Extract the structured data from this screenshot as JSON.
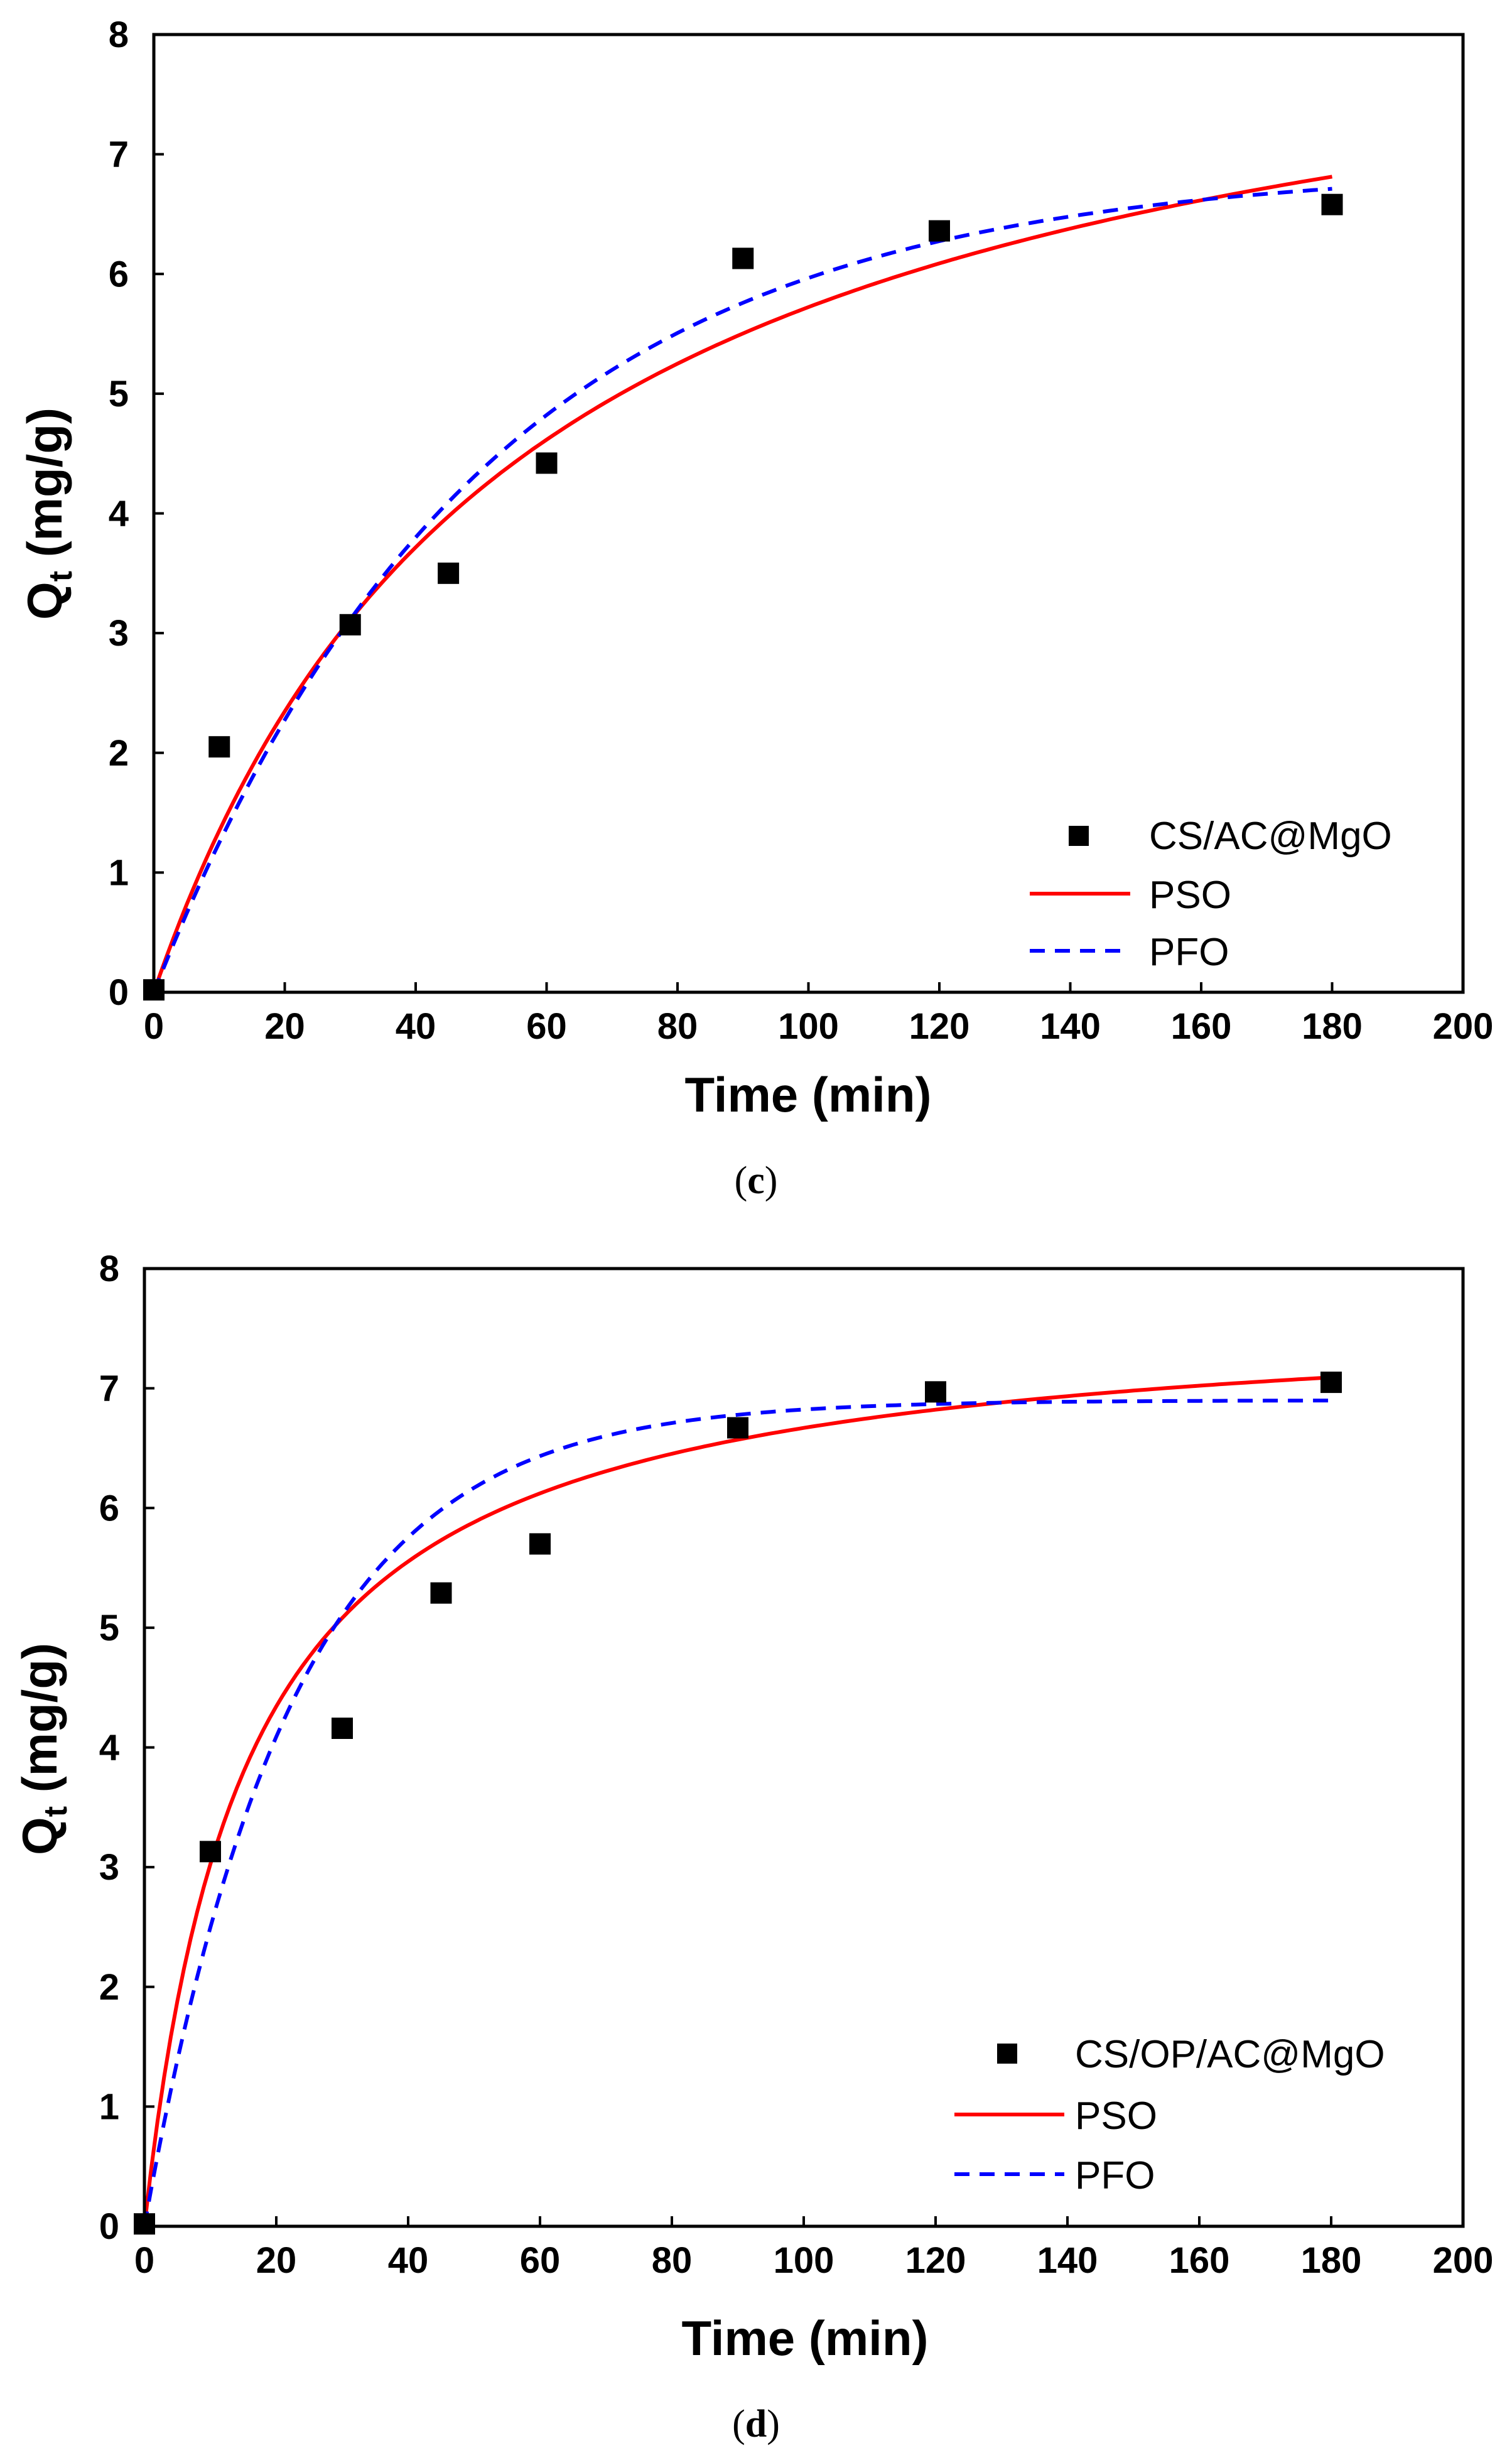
{
  "chart_data": [
    {
      "type": "scatter",
      "title": "",
      "caption": {
        "open": "(",
        "letter": "c",
        "close": ")"
      },
      "xlabel": "Time (min)",
      "ylabel": {
        "main": "Q",
        "sub": "t",
        "rest": " (mg/g)"
      },
      "xlim": [
        0,
        200
      ],
      "ylim": [
        0,
        8
      ],
      "xticks": [
        0,
        20,
        40,
        60,
        80,
        100,
        120,
        140,
        160,
        180,
        200
      ],
      "yticks": [
        0,
        1,
        2,
        3,
        4,
        5,
        6,
        7,
        8
      ],
      "grid": false,
      "legend_position": "bottom-right",
      "series": [
        {
          "name": "CS/AC@MgO",
          "kind": "markers",
          "color": "#000000",
          "x": [
            0,
            10,
            30,
            45,
            60,
            90,
            120,
            180
          ],
          "y": [
            0.02,
            2.05,
            3.07,
            3.5,
            4.42,
            6.13,
            6.36,
            6.58
          ]
        },
        {
          "name": "PSO",
          "kind": "line",
          "color": "#ff0000",
          "dash": "solid",
          "model": {
            "form": "pso",
            "qe": 8.94,
            "k": 0.00199
          },
          "x_end": 180
        },
        {
          "name": "PFO",
          "kind": "line",
          "color": "#0000ff",
          "dash": "dashed",
          "model": {
            "form": "pfo",
            "qe": 6.9,
            "k": 0.02
          },
          "x_end": 180
        }
      ]
    },
    {
      "type": "scatter",
      "title": "",
      "caption": {
        "open": "(",
        "letter": "d",
        "close": ")"
      },
      "xlabel": "Time (min)",
      "ylabel": {
        "main": "Q",
        "sub": "t",
        "rest": " (mg/g)"
      },
      "xlim": [
        0,
        200
      ],
      "ylim": [
        0,
        8
      ],
      "xticks": [
        0,
        20,
        40,
        60,
        80,
        100,
        120,
        140,
        160,
        180,
        200
      ],
      "yticks": [
        0,
        1,
        2,
        3,
        4,
        5,
        6,
        7,
        8
      ],
      "grid": false,
      "legend_position": "bottom-right",
      "series": [
        {
          "name": "CS/OP/AC@MgO",
          "kind": "markers",
          "color": "#000000",
          "x": [
            0,
            10,
            30,
            45,
            60,
            90,
            120,
            180
          ],
          "y": [
            0.02,
            3.13,
            4.16,
            5.29,
            5.7,
            6.67,
            6.97,
            7.05
          ]
        },
        {
          "name": "PSO",
          "kind": "line",
          "color": "#ff0000",
          "dash": "solid",
          "model": {
            "form": "pso",
            "qe": 7.7,
            "k": 0.0084
          },
          "x_end": 180
        },
        {
          "name": "PFO",
          "kind": "line",
          "color": "#0000ff",
          "dash": "dashed",
          "model": {
            "form": "pfo",
            "qe": 6.9,
            "k": 0.0449
          },
          "x_end": 180
        }
      ]
    }
  ]
}
